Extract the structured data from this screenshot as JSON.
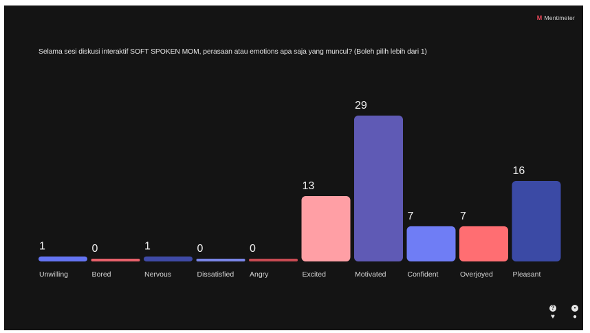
{
  "brand": {
    "logo_text": "Mentimeter",
    "logo_mark": "M"
  },
  "question": "Selama sesi diskusi interaktif SOFT SPOKEN MOM, perasaan atau emotions apa saja yang muncul? (Boleh pilih lebih dari 1)",
  "icons": {
    "left": {
      "top": "?",
      "name_top": "question-icon",
      "name_bottom": "heart-icon"
    },
    "right": {
      "name_top": "chat-icon",
      "name_bottom": "person-icon"
    }
  },
  "chart_data": {
    "type": "bar",
    "categories": [
      "Unwilling",
      "Bored",
      "Nervous",
      "Dissatisfied",
      "Angry",
      "Excited",
      "Motivated",
      "Confident",
      "Overjoyed",
      "Pleasant"
    ],
    "values": [
      1,
      0,
      1,
      0,
      0,
      13,
      29,
      7,
      7,
      16
    ],
    "colors": [
      "#6474f2",
      "#e8616b",
      "#3f4aa6",
      "#7a86e8",
      "#c84b53",
      "#ff9fa5",
      "#5f5ab5",
      "#6f7df5",
      "#ff6e72",
      "#3b4aa5"
    ],
    "title": "",
    "xlabel": "",
    "ylabel": ""
  }
}
